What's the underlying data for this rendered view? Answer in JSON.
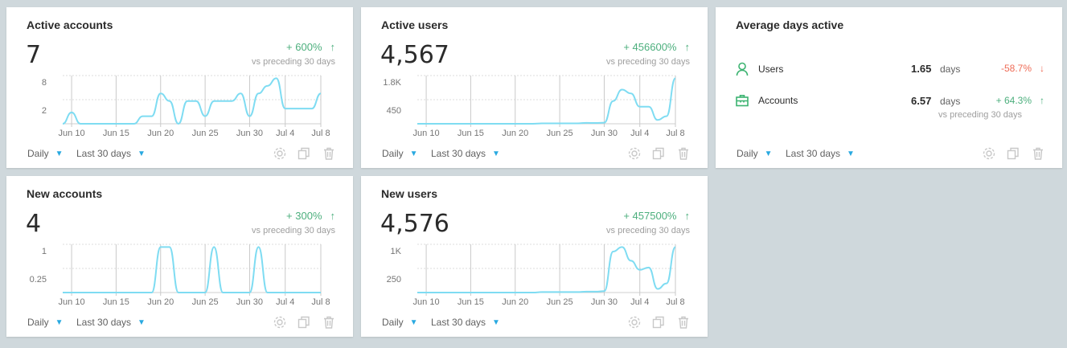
{
  "colors": {
    "line": "#7fdcf2",
    "positive": "#4caf7d",
    "negative": "#ef6c57",
    "accent": "#29a9e0"
  },
  "footer": {
    "interval": "Daily",
    "range": "Last 30 days"
  },
  "vs_text": "vs preceding 30 days",
  "cards": [
    {
      "title": "Active accounts",
      "value": "7",
      "change": "+ 600%",
      "direction": "up",
      "chart_data": {
        "type": "line",
        "x_ticks": [
          "Jun 10",
          "Jun 15",
          "Jun 20",
          "Jun 25",
          "Jun 30",
          "Jul 4",
          "Jul 8"
        ],
        "y_ticks": [
          "8",
          "2"
        ],
        "values": [
          0,
          1.5,
          0,
          0,
          0,
          0,
          0,
          0,
          0,
          1,
          1,
          4,
          3,
          0,
          3,
          3,
          1,
          3,
          3,
          3,
          4,
          1,
          4,
          5,
          6,
          2,
          2,
          2,
          2,
          4
        ]
      }
    },
    {
      "title": "Active users",
      "value": "4,567",
      "change": "+ 456600%",
      "direction": "up",
      "chart_data": {
        "type": "line",
        "x_ticks": [
          "Jun 10",
          "Jun 15",
          "Jun 20",
          "Jun 25",
          "Jun 30",
          "Jul 4",
          "Jul 8"
        ],
        "y_ticks": [
          "1.8K",
          "450"
        ],
        "values": [
          0,
          0,
          0,
          0,
          0,
          0,
          0,
          0,
          0,
          0,
          0,
          0,
          0,
          0,
          20,
          20,
          20,
          20,
          20,
          50,
          40,
          60,
          1200,
          1800,
          1600,
          900,
          900,
          200,
          400,
          2400
        ]
      }
    },
    {
      "title": "Average days active",
      "rows": [
        {
          "label": "Users",
          "icon": "user-icon",
          "value": "1.65",
          "unit": "days",
          "change": "-58.7%",
          "direction": "down"
        },
        {
          "label": "Accounts",
          "icon": "briefcase-icon",
          "value": "6.57",
          "unit": "days",
          "change": "+ 64.3%",
          "direction": "up"
        }
      ]
    },
    {
      "title": "New accounts",
      "value": "4",
      "change": "+ 300%",
      "direction": "up",
      "chart_data": {
        "type": "line",
        "x_ticks": [
          "Jun 10",
          "Jun 15",
          "Jun 20",
          "Jun 25",
          "Jun 30",
          "Jul 4",
          "Jul 8"
        ],
        "y_ticks": [
          "1",
          "0.25"
        ],
        "values": [
          0,
          0,
          0,
          0,
          0,
          0,
          0,
          0,
          0,
          0,
          0,
          1,
          1,
          0,
          0,
          0,
          0,
          1,
          0,
          0,
          0,
          0,
          1,
          0,
          0,
          0,
          0,
          0,
          0,
          0
        ]
      }
    },
    {
      "title": "New users",
      "value": "4,576",
      "change": "+ 457500%",
      "direction": "up",
      "chart_data": {
        "type": "line",
        "x_ticks": [
          "Jun 10",
          "Jun 15",
          "Jun 20",
          "Jun 25",
          "Jun 30",
          "Jul 4",
          "Jul 8"
        ],
        "y_ticks": [
          "1K",
          "250"
        ],
        "values": [
          0,
          0,
          0,
          0,
          0,
          0,
          0,
          0,
          0,
          0,
          0,
          0,
          0,
          0,
          10,
          10,
          10,
          10,
          10,
          20,
          20,
          30,
          900,
          1000,
          700,
          500,
          550,
          80,
          200,
          1000
        ]
      }
    }
  ]
}
